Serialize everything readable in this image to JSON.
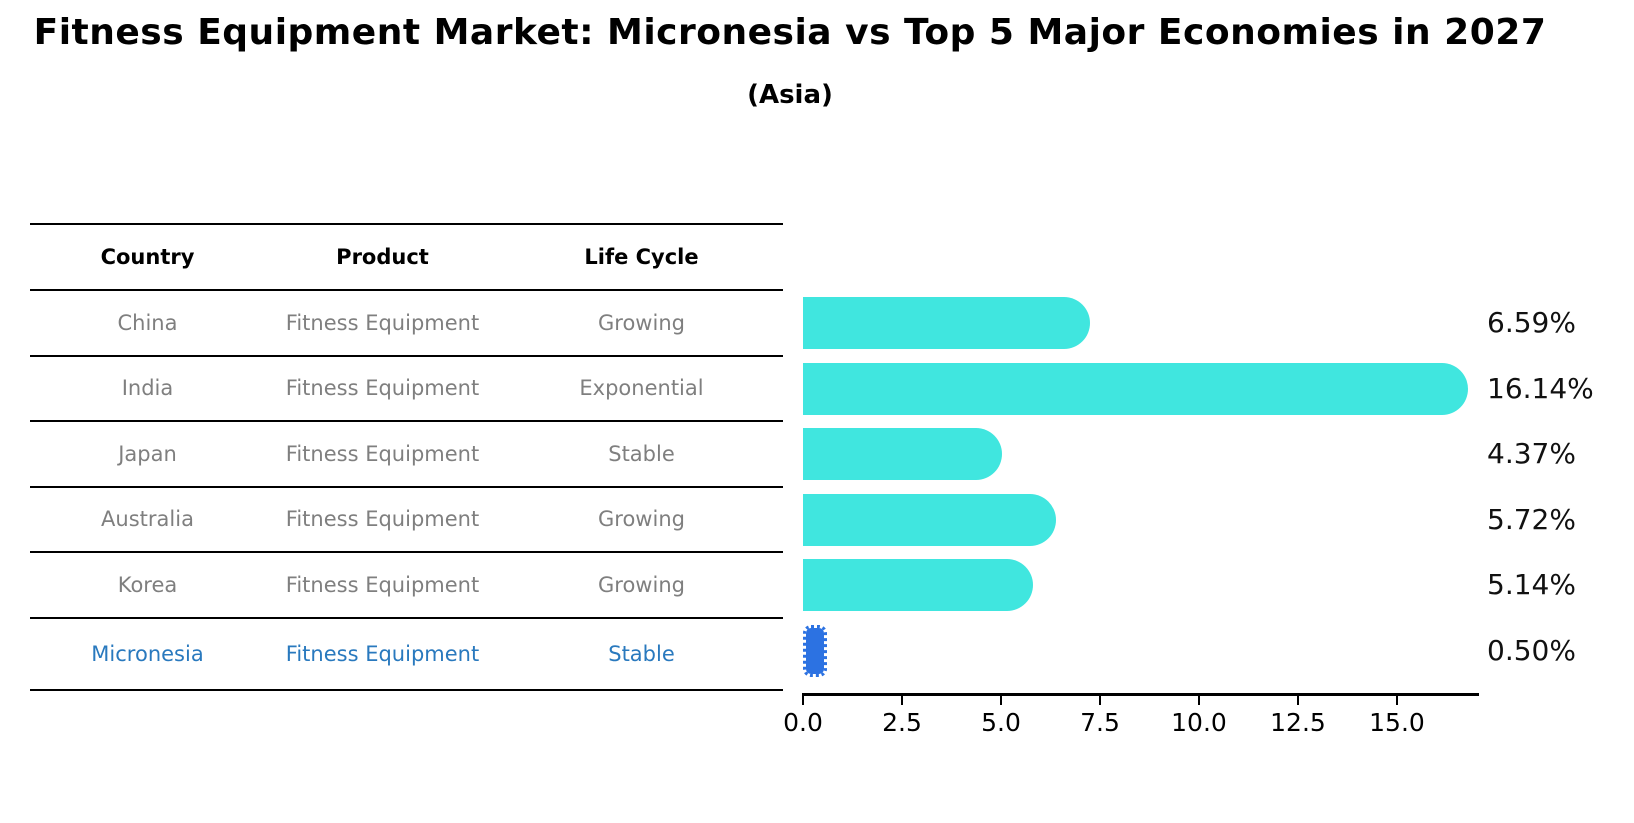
{
  "title": "Fitness Equipment Market: Micronesia vs Top 5 Major Economies in 2027",
  "subtitle": "(Asia)",
  "table": {
    "columns": [
      "Country",
      "Product",
      "Life Cycle"
    ],
    "rows": [
      {
        "country": "China",
        "product": "Fitness Equipment",
        "life_cycle": "Growing",
        "highlighted": false
      },
      {
        "country": "India",
        "product": "Fitness Equipment",
        "life_cycle": "Exponential",
        "highlighted": false
      },
      {
        "country": "Japan",
        "product": "Fitness Equipment",
        "life_cycle": "Stable",
        "highlighted": false
      },
      {
        "country": "Australia",
        "product": "Fitness Equipment",
        "life_cycle": "Growing",
        "highlighted": false
      },
      {
        "country": "Korea",
        "product": "Fitness Equipment",
        "life_cycle": "Growing",
        "highlighted": false
      },
      {
        "country": "Micronesia",
        "product": "Fitness Equipment",
        "life_cycle": "Stable",
        "highlighted": true
      }
    ]
  },
  "chart_data": {
    "type": "bar",
    "orientation": "horizontal",
    "title": "Fitness Equipment Market: Micronesia vs Top 5 Major Economies in 2027",
    "subtitle": "(Asia)",
    "categories": [
      "China",
      "India",
      "Japan",
      "Australia",
      "Korea",
      "Micronesia"
    ],
    "values": [
      6.59,
      16.14,
      4.37,
      5.72,
      5.14,
      0.5
    ],
    "value_labels": [
      "6.59%",
      "16.14%",
      "4.37%",
      "5.72%",
      "5.14%",
      "0.50%"
    ],
    "xticklabels": [
      "0.0",
      "2.5",
      "5.0",
      "7.5",
      "10.0",
      "12.5",
      "15.0"
    ],
    "xticks": [
      0,
      2.5,
      5,
      7.5,
      10,
      12.5,
      15
    ],
    "xlim": [
      0,
      17
    ],
    "xlabel": "",
    "ylabel": "",
    "grid": false,
    "legend": "none",
    "highlight_index": 5,
    "colors": {
      "default_bar": "#40e6df",
      "highlight_bar": "#2c72e2",
      "highlight_text": "#2979be",
      "row_text": "#7f7f7f",
      "value_label": "#111111",
      "axis": "#000000"
    }
  }
}
